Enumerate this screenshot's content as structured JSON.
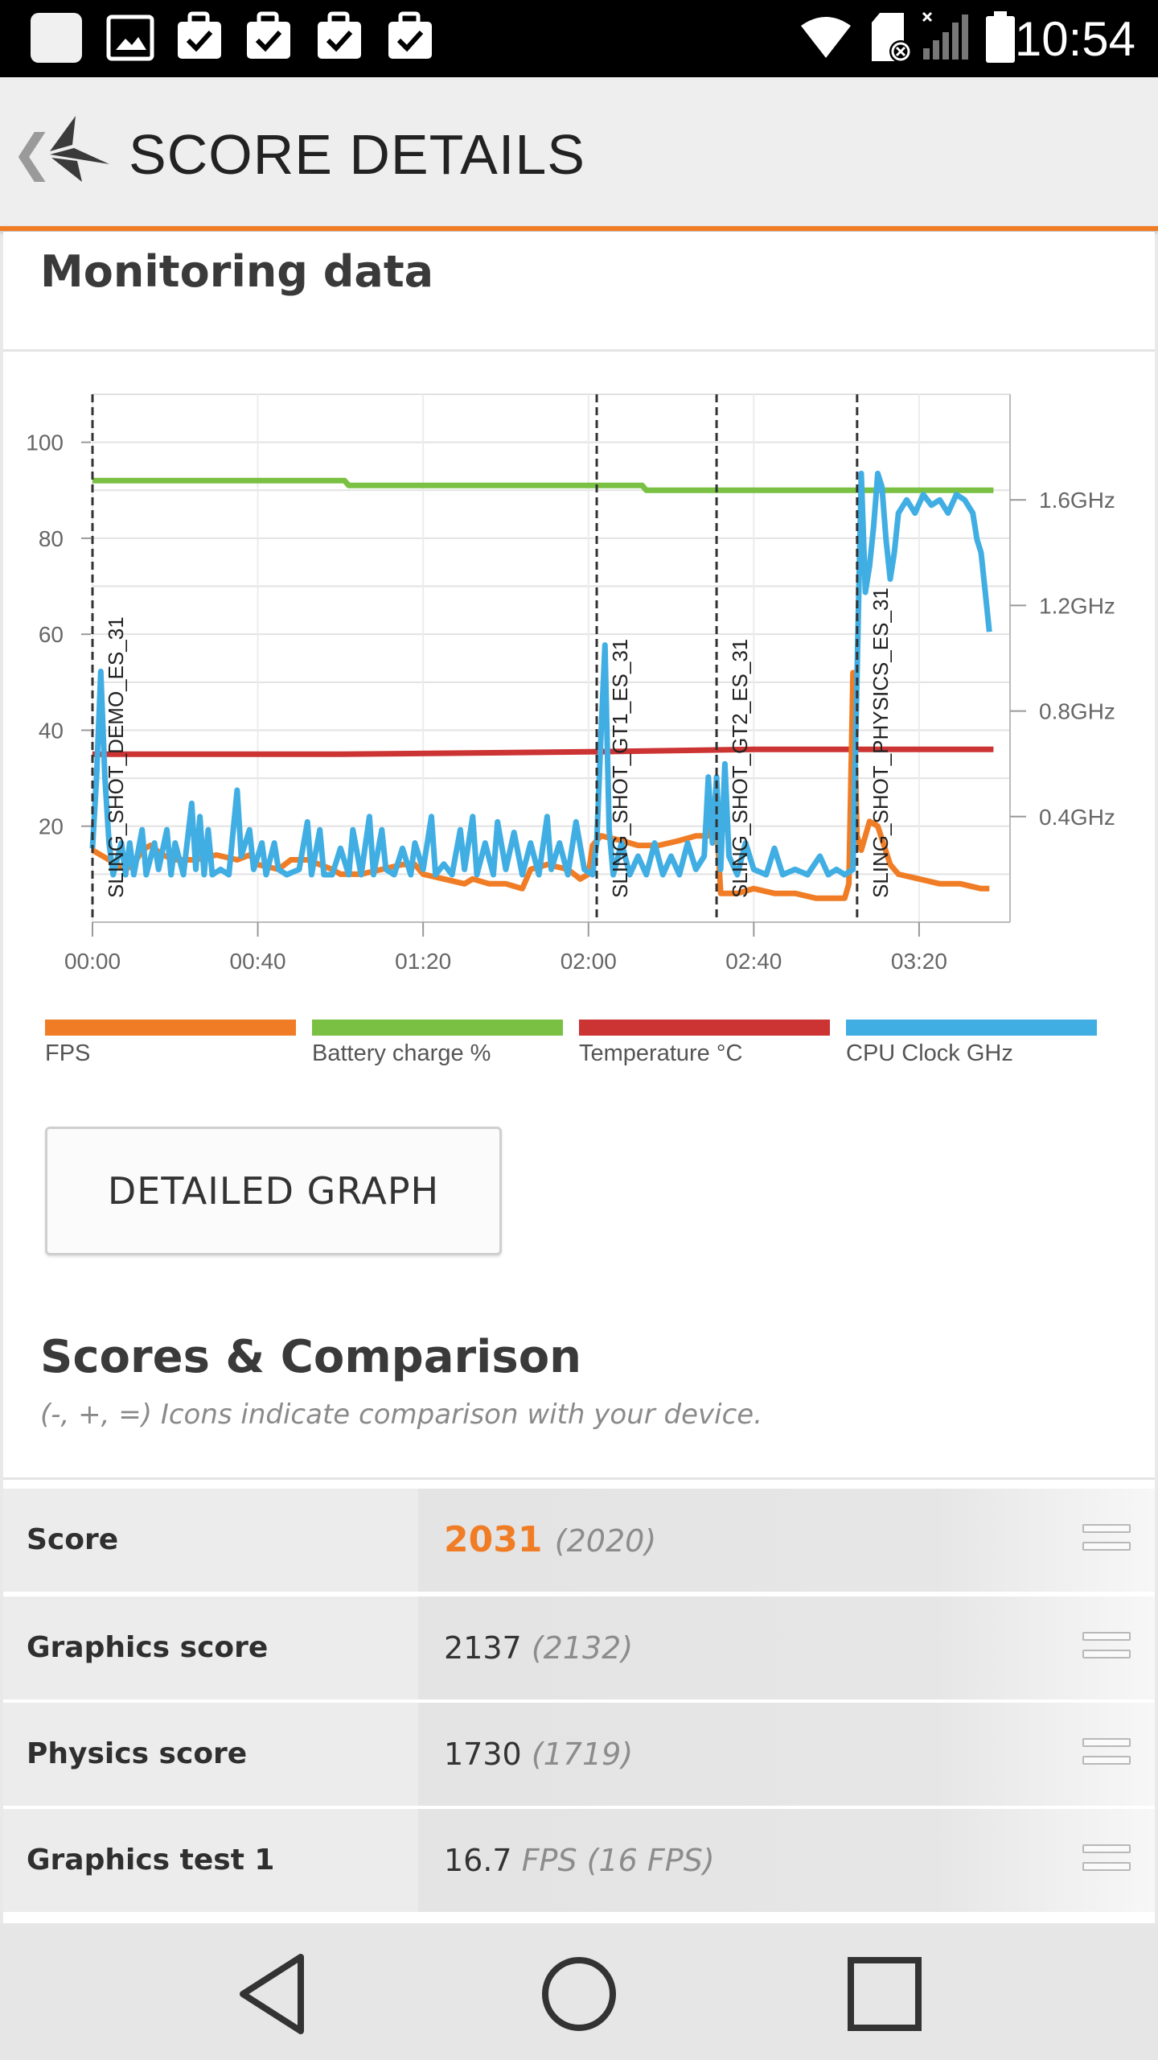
{
  "status_bar": {
    "time": "10:54",
    "left_icons": [
      "app-square-icon",
      "image-icon",
      "checked-briefcase-icon",
      "checked-briefcase-icon",
      "checked-briefcase-icon",
      "checked-briefcase-icon"
    ],
    "right_icons": [
      "wifi-icon",
      "sd-card-icon",
      "signal-icon",
      "battery-icon"
    ]
  },
  "app_bar": {
    "title": "SCORE DETAILS"
  },
  "monitoring": {
    "title": "Monitoring data",
    "detailed_graph_button": "DETAILED GRAPH"
  },
  "chart_data": {
    "type": "line",
    "x_tick_labels": [
      "00:00",
      "00:40",
      "01:20",
      "02:00",
      "02:40",
      "03:20"
    ],
    "y_left_ticks": [
      20,
      40,
      60,
      80,
      100
    ],
    "y_left_range": [
      0,
      110
    ],
    "y_right_ticks": [
      "0.4GHz",
      "0.8GHz",
      "1.2GHz",
      "1.6GHz"
    ],
    "y_right_range_ghz": [
      0,
      2.0
    ],
    "x_range_seconds": [
      0,
      222
    ],
    "grid": true,
    "legend_position": "bottom",
    "run_markers": [
      {
        "label": "SLING_SHOT_DEMO_ES_31",
        "t": 0
      },
      {
        "label": "SLING_SHOT_GT1_ES_31",
        "t": 122
      },
      {
        "label": "SLING_SHOT_GT2_ES_31",
        "t": 151
      },
      {
        "label": "SLING_SHOT_PHYSICS_ES_31",
        "t": 185
      }
    ],
    "series": [
      {
        "name": "FPS",
        "color": "#f07d25",
        "axis": "left",
        "points": [
          [
            0,
            15
          ],
          [
            2,
            14
          ],
          [
            4,
            13
          ],
          [
            6,
            12
          ],
          [
            8,
            11
          ],
          [
            10,
            12
          ],
          [
            12,
            15
          ],
          [
            14,
            16
          ],
          [
            17,
            14
          ],
          [
            20,
            13
          ],
          [
            25,
            13
          ],
          [
            30,
            14
          ],
          [
            35,
            13
          ],
          [
            38,
            14
          ],
          [
            40,
            12
          ],
          [
            45,
            11
          ],
          [
            48,
            13
          ],
          [
            52,
            13
          ],
          [
            58,
            11
          ],
          [
            60,
            10
          ],
          [
            65,
            10
          ],
          [
            70,
            11
          ],
          [
            75,
            12
          ],
          [
            78,
            12
          ],
          [
            80,
            10
          ],
          [
            85,
            9
          ],
          [
            90,
            8
          ],
          [
            92,
            9
          ],
          [
            96,
            8
          ],
          [
            100,
            8
          ],
          [
            104,
            7
          ],
          [
            106,
            11
          ],
          [
            110,
            12
          ],
          [
            115,
            11
          ],
          [
            118,
            9
          ],
          [
            120,
            10
          ],
          [
            121,
            16
          ],
          [
            123,
            18
          ],
          [
            128,
            17
          ],
          [
            132,
            16
          ],
          [
            137,
            16
          ],
          [
            142,
            17
          ],
          [
            146,
            18
          ],
          [
            149,
            18
          ],
          [
            150,
            24
          ],
          [
            151,
            21
          ],
          [
            152,
            6
          ],
          [
            156,
            6
          ],
          [
            160,
            7
          ],
          [
            165,
            6
          ],
          [
            170,
            6
          ],
          [
            175,
            5
          ],
          [
            180,
            5
          ],
          [
            182,
            5
          ],
          [
            183,
            8
          ],
          [
            184,
            52
          ],
          [
            185,
            18
          ],
          [
            186,
            15
          ],
          [
            188,
            21
          ],
          [
            190,
            20
          ],
          [
            193,
            12
          ],
          [
            195,
            10
          ],
          [
            200,
            9
          ],
          [
            205,
            8
          ],
          [
            210,
            8
          ],
          [
            215,
            7
          ],
          [
            217,
            7
          ]
        ]
      },
      {
        "name": "Battery charge %",
        "color": "#7ac143",
        "axis": "left",
        "points": [
          [
            0,
            92
          ],
          [
            61,
            92
          ],
          [
            62,
            91
          ],
          [
            133,
            91
          ],
          [
            134,
            90
          ],
          [
            180,
            90
          ],
          [
            200,
            90
          ],
          [
            218,
            90
          ]
        ]
      },
      {
        "name": "Temperature °C",
        "color": "#cc3333",
        "axis": "left",
        "points": [
          [
            0,
            35
          ],
          [
            60,
            35
          ],
          [
            120,
            35.5
          ],
          [
            160,
            36
          ],
          [
            200,
            36
          ],
          [
            218,
            36
          ]
        ]
      },
      {
        "name": "CPU Clock GHz",
        "color": "#41aee3",
        "axis": "right",
        "points": [
          [
            0,
            0.28
          ],
          [
            1,
            0.55
          ],
          [
            2,
            0.95
          ],
          [
            3,
            0.55
          ],
          [
            4,
            0.3
          ],
          [
            5,
            0.18
          ],
          [
            7,
            0.3
          ],
          [
            8,
            0.18
          ],
          [
            9,
            0.3
          ],
          [
            10,
            0.18
          ],
          [
            12,
            0.35
          ],
          [
            13,
            0.18
          ],
          [
            15,
            0.3
          ],
          [
            16,
            0.2
          ],
          [
            18,
            0.35
          ],
          [
            19,
            0.18
          ],
          [
            20,
            0.3
          ],
          [
            22,
            0.18
          ],
          [
            24,
            0.45
          ],
          [
            25,
            0.2
          ],
          [
            26,
            0.4
          ],
          [
            27,
            0.18
          ],
          [
            28,
            0.35
          ],
          [
            29,
            0.18
          ],
          [
            31,
            0.2
          ],
          [
            33,
            0.18
          ],
          [
            35,
            0.5
          ],
          [
            36,
            0.25
          ],
          [
            38,
            0.35
          ],
          [
            39,
            0.2
          ],
          [
            41,
            0.3
          ],
          [
            42,
            0.18
          ],
          [
            44,
            0.3
          ],
          [
            45,
            0.2
          ],
          [
            47,
            0.18
          ],
          [
            50,
            0.2
          ],
          [
            52,
            0.38
          ],
          [
            53,
            0.18
          ],
          [
            55,
            0.35
          ],
          [
            56,
            0.18
          ],
          [
            58,
            0.18
          ],
          [
            60,
            0.28
          ],
          [
            62,
            0.18
          ],
          [
            63,
            0.35
          ],
          [
            65,
            0.18
          ],
          [
            67,
            0.4
          ],
          [
            68,
            0.18
          ],
          [
            70,
            0.35
          ],
          [
            71,
            0.2
          ],
          [
            73,
            0.18
          ],
          [
            75,
            0.28
          ],
          [
            77,
            0.18
          ],
          [
            78,
            0.3
          ],
          [
            80,
            0.2
          ],
          [
            82,
            0.4
          ],
          [
            83,
            0.18
          ],
          [
            85,
            0.22
          ],
          [
            87,
            0.18
          ],
          [
            89,
            0.35
          ],
          [
            90,
            0.2
          ],
          [
            92,
            0.4
          ],
          [
            93,
            0.18
          ],
          [
            95,
            0.3
          ],
          [
            97,
            0.18
          ],
          [
            98,
            0.38
          ],
          [
            100,
            0.2
          ],
          [
            102,
            0.34
          ],
          [
            104,
            0.18
          ],
          [
            106,
            0.3
          ],
          [
            108,
            0.18
          ],
          [
            110,
            0.4
          ],
          [
            111,
            0.2
          ],
          [
            113,
            0.3
          ],
          [
            115,
            0.18
          ],
          [
            117,
            0.38
          ],
          [
            119,
            0.2
          ],
          [
            121,
            0.18
          ],
          [
            122,
            0.3
          ],
          [
            123,
            0.7
          ],
          [
            124,
            1.05
          ],
          [
            125,
            0.35
          ],
          [
            126,
            0.18
          ],
          [
            128,
            0.3
          ],
          [
            130,
            0.18
          ],
          [
            132,
            0.25
          ],
          [
            134,
            0.18
          ],
          [
            136,
            0.3
          ],
          [
            138,
            0.18
          ],
          [
            140,
            0.25
          ],
          [
            142,
            0.18
          ],
          [
            144,
            0.3
          ],
          [
            146,
            0.2
          ],
          [
            148,
            0.25
          ],
          [
            149,
            0.55
          ],
          [
            150,
            0.3
          ],
          [
            151,
            0.55
          ],
          [
            152,
            0.2
          ],
          [
            153,
            0.6
          ],
          [
            154,
            0.25
          ],
          [
            156,
            0.18
          ],
          [
            158,
            0.3
          ],
          [
            160,
            0.2
          ],
          [
            163,
            0.18
          ],
          [
            165,
            0.28
          ],
          [
            167,
            0.18
          ],
          [
            170,
            0.2
          ],
          [
            173,
            0.18
          ],
          [
            176,
            0.25
          ],
          [
            178,
            0.18
          ],
          [
            180,
            0.2
          ],
          [
            182,
            0.18
          ],
          [
            184,
            0.2
          ],
          [
            186,
            1.7
          ],
          [
            187,
            1.25
          ],
          [
            188,
            1.35
          ],
          [
            189,
            1.5
          ],
          [
            190,
            1.7
          ],
          [
            191,
            1.65
          ],
          [
            192,
            1.45
          ],
          [
            193,
            1.3
          ],
          [
            194,
            1.4
          ],
          [
            195,
            1.55
          ],
          [
            197,
            1.6
          ],
          [
            199,
            1.55
          ],
          [
            201,
            1.62
          ],
          [
            203,
            1.58
          ],
          [
            205,
            1.6
          ],
          [
            207,
            1.55
          ],
          [
            209,
            1.62
          ],
          [
            211,
            1.6
          ],
          [
            213,
            1.55
          ],
          [
            214,
            1.45
          ],
          [
            215,
            1.4
          ],
          [
            216,
            1.25
          ],
          [
            217,
            1.1
          ]
        ]
      }
    ]
  },
  "legend": [
    {
      "label": "FPS",
      "color": "#f07d25"
    },
    {
      "label": "Battery charge %",
      "color": "#7ac143"
    },
    {
      "label": "Temperature °C",
      "color": "#cc3333"
    },
    {
      "label": "CPU Clock GHz",
      "color": "#41aee3"
    }
  ],
  "scores": {
    "title": "Scores & Comparison",
    "subtitle": "(-, +, =) Icons indicate comparison with your device.",
    "rows": [
      {
        "name": "Score",
        "value": "2031",
        "reference": "(2020)",
        "comparison": "equal"
      },
      {
        "name": "Graphics score",
        "value": "2137",
        "reference": "(2132)",
        "comparison": "equal"
      },
      {
        "name": "Physics score",
        "value": "1730",
        "reference": "(1719)",
        "comparison": "equal"
      },
      {
        "name": "Graphics test 1",
        "value": "16.7",
        "reference": "FPS (16 FPS)",
        "comparison": "equal"
      }
    ]
  },
  "nav_bar": {
    "buttons": [
      "back",
      "home",
      "recents"
    ]
  }
}
